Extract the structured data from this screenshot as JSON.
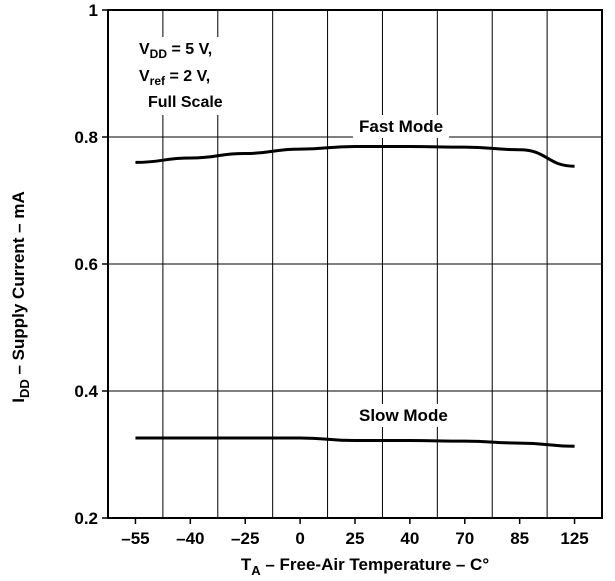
{
  "chart_data": {
    "type": "line",
    "x": [
      "-55",
      "-40",
      "-25",
      "0",
      "25",
      "40",
      "70",
      "85",
      "125"
    ],
    "xlabel": {
      "main": "T",
      "sub": "A",
      "rest": " – Free-Air Temperature – C°"
    },
    "ylabel": {
      "main": "I",
      "sub": "DD",
      "rest": " – Supply Current – mA"
    },
    "ylim": [
      0.2,
      1.0
    ],
    "yticks": [
      "0.2",
      "0.4",
      "0.6",
      "0.8",
      "1"
    ],
    "yticks_values": [
      0.2,
      0.4,
      0.6,
      0.8,
      1.0
    ],
    "grid": true,
    "series": [
      {
        "name": "Fast Mode",
        "values": [
          0.76,
          0.767,
          0.774,
          0.781,
          0.785,
          0.785,
          0.784,
          0.78,
          0.754
        ]
      },
      {
        "name": "Slow Mode",
        "values": [
          0.326,
          0.326,
          0.326,
          0.326,
          0.322,
          0.322,
          0.321,
          0.318,
          0.313
        ]
      }
    ],
    "conditions": [
      {
        "main": "V",
        "sub": "DD",
        "rest": " = 5 V,"
      },
      {
        "main": "V",
        "sub": "ref",
        "rest": " = 2 V,"
      },
      {
        "main": "Full Scale",
        "sub": "",
        "rest": ""
      }
    ]
  }
}
